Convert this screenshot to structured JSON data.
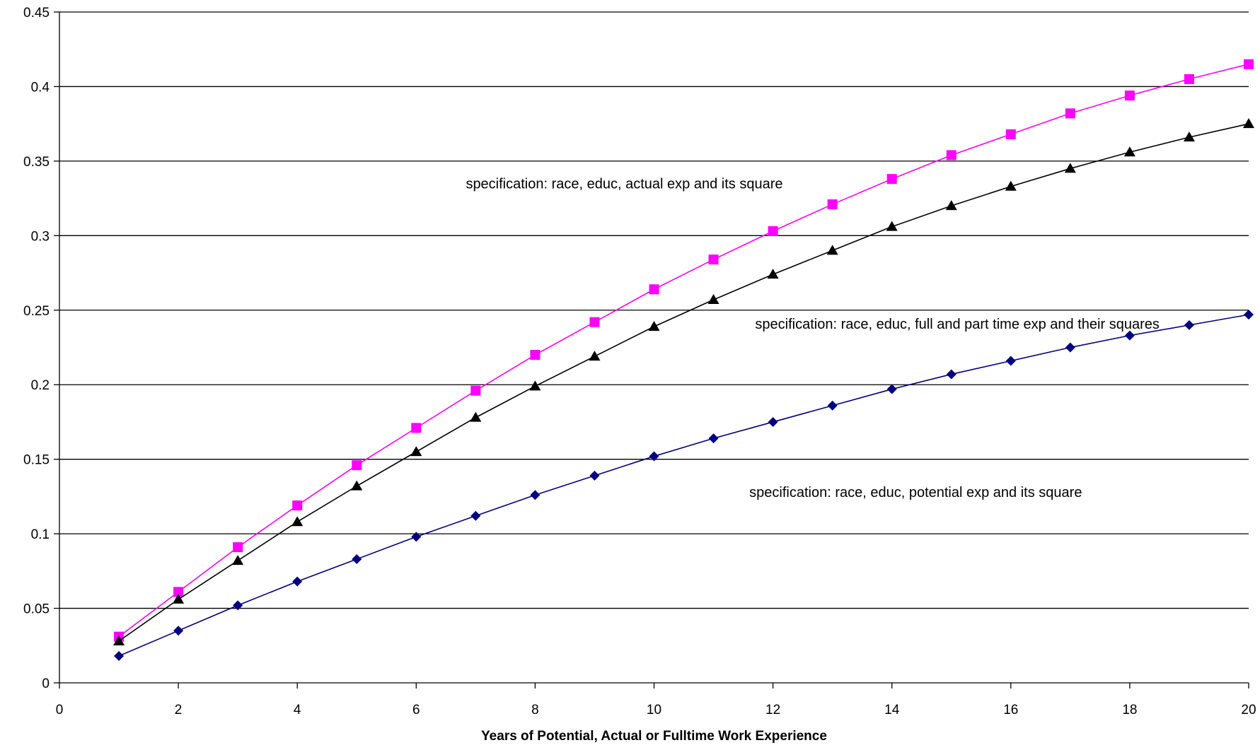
{
  "chart_data": {
    "type": "line",
    "title": "",
    "xlabel": "Years of Potential, Actual or Fulltime Work Experience",
    "ylabel": "",
    "xlim": [
      0,
      20
    ],
    "ylim": [
      0,
      0.45
    ],
    "x_ticks": [
      0,
      2,
      4,
      6,
      8,
      10,
      12,
      14,
      16,
      18,
      20
    ],
    "x_tick_labels": [
      "0",
      "2",
      "4",
      "6",
      "8",
      "10",
      "12",
      "14",
      "16",
      "18",
      "20"
    ],
    "y_ticks": [
      0,
      0.05,
      0.1,
      0.15,
      0.2,
      0.25,
      0.3,
      0.35,
      0.4,
      0.45
    ],
    "y_tick_labels": [
      "0",
      "0.05",
      "0.1",
      "0.15",
      "0.2",
      "0.25",
      "0.3",
      "0.35",
      "0.4",
      "0.45"
    ],
    "grid": "horizontal",
    "legend": "none",
    "x": [
      1,
      2,
      3,
      4,
      5,
      6,
      7,
      8,
      9,
      10,
      11,
      12,
      13,
      14,
      15,
      16,
      17,
      18,
      19,
      20
    ],
    "series": [
      {
        "marker": "square",
        "color": "#FF00FF",
        "values": [
          0.031,
          0.061,
          0.091,
          0.119,
          0.146,
          0.171,
          0.196,
          0.22,
          0.242,
          0.264,
          0.284,
          0.303,
          0.321,
          0.338,
          0.354,
          0.368,
          0.382,
          0.394,
          0.405,
          0.415
        ]
      },
      {
        "marker": "triangle",
        "color": "#000000",
        "values": [
          0.028,
          0.056,
          0.082,
          0.108,
          0.132,
          0.155,
          0.178,
          0.199,
          0.219,
          0.239,
          0.257,
          0.274,
          0.29,
          0.306,
          0.32,
          0.333,
          0.345,
          0.356,
          0.366,
          0.375
        ]
      },
      {
        "marker": "diamond",
        "color": "#000080",
        "values": [
          0.018,
          0.035,
          0.052,
          0.068,
          0.083,
          0.098,
          0.112,
          0.126,
          0.139,
          0.152,
          0.164,
          0.175,
          0.186,
          0.197,
          0.207,
          0.216,
          0.225,
          0.233,
          0.24,
          0.247
        ]
      }
    ],
    "annotations": [
      {
        "text": "specification: race, educ, actual exp and its square",
        "x": 9.5,
        "y": 0.335
      },
      {
        "text": "specification: race, educ, full and part time exp and their squares",
        "x": 15.1,
        "y": 0.241
      },
      {
        "text": "specification: race, educ, potential exp and its square",
        "x": 14.4,
        "y": 0.128
      }
    ]
  }
}
